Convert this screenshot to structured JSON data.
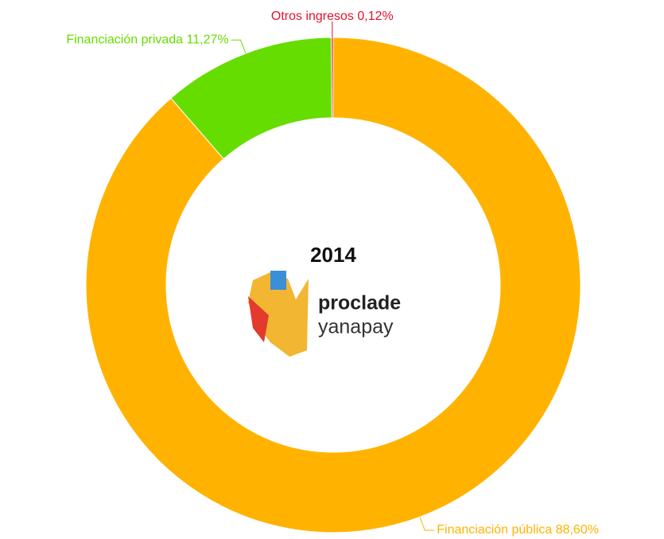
{
  "chart_data": {
    "type": "donut",
    "title": "2014",
    "categories": [
      "Financiación pública",
      "Financiación privada",
      "Otros ingresos"
    ],
    "values": [
      88.6,
      11.27,
      0.12
    ],
    "value_labels": [
      "88,60%",
      "11,27%",
      "0,12%"
    ],
    "colors": [
      "#FFB300",
      "#66DD00",
      "#E8102A"
    ]
  },
  "logo": {
    "line1": "proclade",
    "line2": "yanapay"
  }
}
